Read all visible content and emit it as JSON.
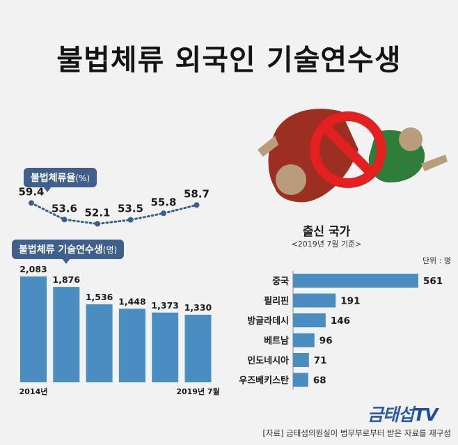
{
  "title": "불법체류 외국인 기술연수생",
  "rate_pill": {
    "label": "불법체류율",
    "unit": "(%)"
  },
  "count_pill": {
    "label": "불법체류 기술연수생",
    "unit": "(명)"
  },
  "origin": {
    "title": "출신 국가",
    "subtitle": "<2019년 7월 기준>",
    "unit": "단위 : 명"
  },
  "logo": {
    "text": "금태섭",
    "tv": "TV"
  },
  "source": "[자료] 금태섭의원실이 법무부로부터 받은 자료를 재구성",
  "colors": {
    "bar": "#4a8dc0",
    "dot": "#3a5f8c",
    "pill": "#3f5f8c"
  },
  "chart_data": [
    {
      "type": "line",
      "title": "불법체류율",
      "ylabel": "(%)",
      "values": [
        59.4,
        53.6,
        52.1,
        53.5,
        55.8,
        58.7
      ],
      "ylim": [
        50,
        61
      ]
    },
    {
      "type": "bar",
      "title": "불법체류 기술연수생",
      "ylabel": "(명)",
      "categories": [
        "2014년",
        "",
        "",
        "",
        "",
        "2019년 7월"
      ],
      "values": [
        2083,
        1876,
        1536,
        1448,
        1373,
        1330
      ],
      "value_labels": [
        "2,083",
        "1,876",
        "1,536",
        "1,448",
        "1,373",
        "1,330"
      ],
      "ylim": [
        0,
        2083
      ]
    },
    {
      "type": "bar",
      "orientation": "horizontal",
      "title": "출신 국가",
      "categories": [
        "중국",
        "필리핀",
        "방글라데시",
        "베트남",
        "인도네시아",
        "우즈베키스탄"
      ],
      "values": [
        561,
        191,
        146,
        96,
        71,
        68
      ],
      "xlim": [
        0,
        561
      ]
    }
  ]
}
